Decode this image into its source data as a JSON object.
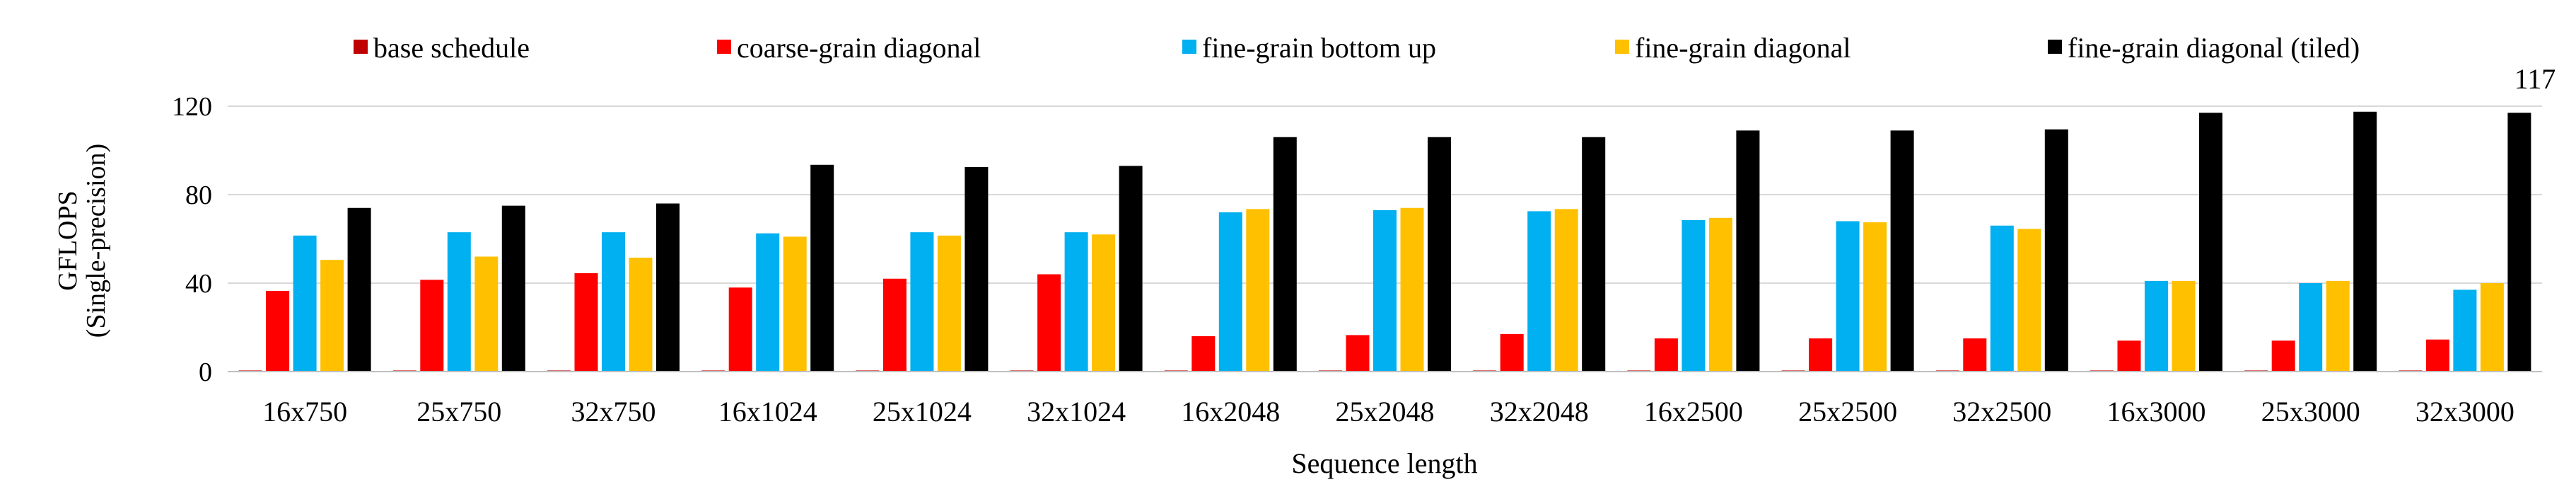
{
  "chart_data": {
    "type": "bar",
    "title": "",
    "xlabel": "Sequence length",
    "ylabel_lines": [
      "GFLOPS",
      "(Single-precision)"
    ],
    "ylim": [
      0,
      120
    ],
    "yticks": [
      0,
      40,
      80,
      120
    ],
    "grid": true,
    "legend_placement": "top",
    "categories": [
      "16x750",
      "25x750",
      "32x750",
      "16x1024",
      "25x1024",
      "32x1024",
      "16x2048",
      "25x2048",
      "32x2048",
      "16x2500",
      "25x2500",
      "32x2500",
      "16x3000",
      "25x3000",
      "32x3000"
    ],
    "series": [
      {
        "name": "base schedule",
        "color": "#c00000",
        "values": [
          0.5,
          0.5,
          0.5,
          0.5,
          0.5,
          0.5,
          0.5,
          0.5,
          0.5,
          0.5,
          0.5,
          0.5,
          0.5,
          0.5,
          0.5
        ]
      },
      {
        "name": "coarse-grain diagonal",
        "color": "#ff0000",
        "values": [
          36.5,
          41.5,
          44.5,
          38,
          42,
          44,
          16,
          16.5,
          17,
          15,
          15,
          15,
          14,
          14,
          14.5
        ]
      },
      {
        "name": "fine-grain bottom up",
        "color": "#00b0f0",
        "values": [
          61.5,
          63,
          63,
          62.5,
          63,
          63,
          72,
          73,
          72.5,
          68.5,
          68,
          66,
          41,
          40,
          37
        ]
      },
      {
        "name": "fine-grain diagonal",
        "color": "#ffc000",
        "values": [
          50.5,
          52,
          51.5,
          61,
          61.5,
          62,
          73.5,
          74,
          73.5,
          69.5,
          67.5,
          64.5,
          41,
          41,
          40
        ]
      },
      {
        "name": "fine-grain diagonal (tiled)",
        "color": "#000000",
        "values": [
          74,
          75,
          76,
          93.5,
          92.5,
          93,
          106,
          106,
          106,
          109,
          109,
          109.5,
          117,
          117.5,
          117
        ]
      }
    ],
    "annotations": [
      {
        "text": "117"
      }
    ]
  }
}
